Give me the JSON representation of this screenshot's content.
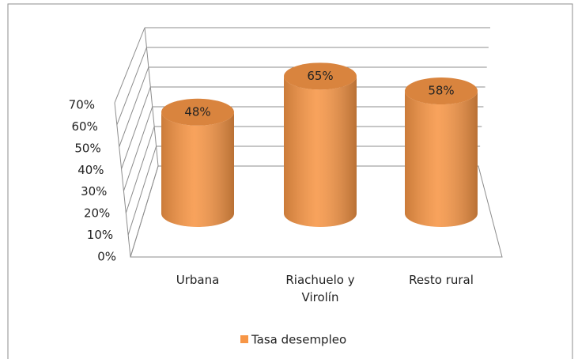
{
  "chart_data": {
    "type": "bar3d",
    "categories": [
      "Urbana",
      "Riachuelo y Virolín",
      "Resto rural"
    ],
    "series": [
      {
        "name": "Tasa desempleo",
        "color": "#f79646",
        "values": [
          48,
          65,
          58
        ],
        "value_labels": [
          "48%",
          "65%",
          "58%"
        ]
      }
    ],
    "ylim": [
      0,
      70
    ],
    "yticks": [
      {
        "value": 0,
        "label": "0%"
      },
      {
        "value": 10,
        "label": "10%"
      },
      {
        "value": 20,
        "label": "20%"
      },
      {
        "value": 30,
        "label": "30%"
      },
      {
        "value": 40,
        "label": "40%"
      },
      {
        "value": 50,
        "label": "50%"
      },
      {
        "value": 60,
        "label": "60%"
      },
      {
        "value": 70,
        "label": "70%"
      }
    ],
    "grid": true,
    "legend": "bottom"
  }
}
